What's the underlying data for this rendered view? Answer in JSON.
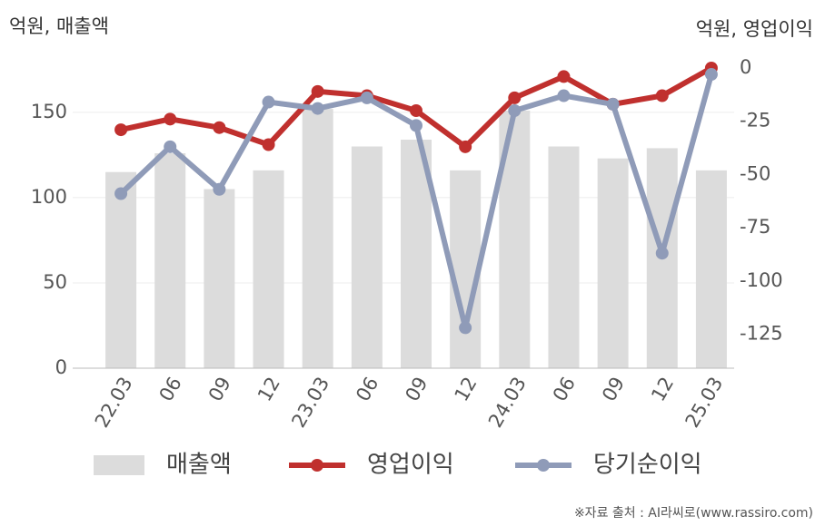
{
  "chart_data": {
    "type": "combo",
    "ylabel": "억원, 매출액",
    "y2label": "억원, 영업이익",
    "categories": [
      "22.03",
      "06",
      "09",
      "12",
      "23.03",
      "06",
      "09",
      "12",
      "24.03",
      "06",
      "09",
      "12",
      "25.03"
    ],
    "series": [
      {
        "name": "매출액",
        "type": "bar",
        "color": "#dcdcdc",
        "axis": "y",
        "values": [
          115,
          126,
          105,
          116,
          152,
          130,
          134,
          116,
          151,
          130,
          123,
          129,
          116
        ]
      },
      {
        "name": "영업이익",
        "type": "line",
        "color": "#c0302e",
        "axis": "y2",
        "values": [
          -29,
          -24,
          -28,
          -36,
          -11,
          -13,
          -20,
          -37,
          -14,
          -4,
          -17,
          -13,
          0
        ]
      },
      {
        "name": "당기순이익",
        "type": "line",
        "color": "#8f9bb8",
        "axis": "y2",
        "values": [
          -59,
          -37,
          -57,
          -16,
          -19,
          -14,
          -27,
          -122,
          -20,
          -13,
          -17,
          -87,
          -3
        ]
      }
    ],
    "ylim": [
      0,
      176
    ],
    "yticks": [
      0,
      50,
      100,
      150
    ],
    "y2lim": [
      -141,
      0
    ],
    "y2ticks": [
      0,
      -25,
      -50,
      -75,
      -100,
      -125
    ],
    "grid": true,
    "source": "※자료 출처 : AI라씨로(www.rassiro.com)"
  }
}
